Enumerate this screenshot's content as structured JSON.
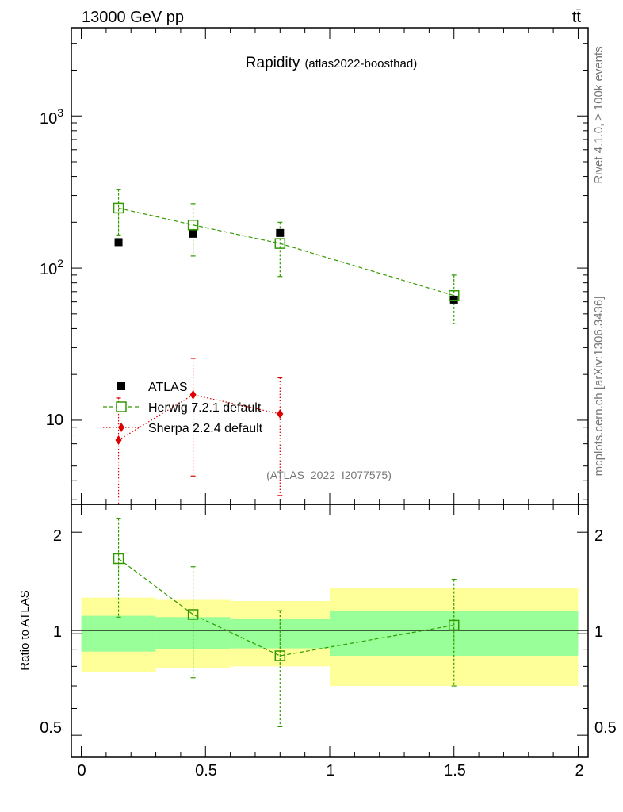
{
  "header": {
    "energy_label": "13000 GeV pp",
    "process_label": "tt̄",
    "title": "Rapidity",
    "subtitle": "(atlas2022-boosthad)",
    "watermark": "(ATLAS_2022_I2077575)",
    "side_label_top": "Rivet 4.1.0, ≥ 100k events",
    "side_label_bottom": "mcplots.cern.ch [arXiv:1306.3436]"
  },
  "chart_data": [
    {
      "type": "scatter",
      "panel": "main",
      "yscale": "log",
      "xlim": [
        -0.04,
        2.04
      ],
      "ylim": [
        2.8,
        3800
      ],
      "ytick_labels": [
        "10",
        "10^2",
        "10^3"
      ],
      "bins": [
        [
          0,
          0.3
        ],
        [
          0.3,
          0.6
        ],
        [
          0.6,
          1.0
        ],
        [
          1.0,
          2.0
        ]
      ],
      "legend_position": "lower-left",
      "series": [
        {
          "name": "ATLAS",
          "color": "#000000",
          "marker": "filled-square",
          "x": [
            0.15,
            0.45,
            0.8,
            1.5
          ],
          "values": [
            148,
            168,
            170,
            62
          ]
        },
        {
          "name": "Herwig 7.2.1 default",
          "color": "#339900",
          "marker": "open-square",
          "line": "dashed",
          "x": [
            0.15,
            0.45,
            0.8,
            1.5
          ],
          "values": [
            248,
            192,
            145,
            66
          ],
          "err_low": [
            165,
            120,
            88,
            43
          ],
          "err_high": [
            330,
            265,
            200,
            90
          ]
        },
        {
          "name": "Sherpa 2.2.4 default",
          "color": "#dd0000",
          "marker": "filled-diamond",
          "line": "dotted",
          "x": [
            0.15,
            0.45,
            0.8
          ],
          "values": [
            7.4,
            14.7,
            11.0
          ],
          "err_low": [
            2.8,
            4.3,
            3.2
          ],
          "err_high": [
            14.0,
            25.5,
            19.0
          ]
        }
      ]
    },
    {
      "type": "scatter",
      "panel": "ratio",
      "ylabel": "Ratio to ATLAS",
      "yscale": "log",
      "xlim": [
        -0.04,
        2.04
      ],
      "ylim": [
        0.43,
        2.42
      ],
      "xtick_labels": [
        "0",
        "0.5",
        "1",
        "1.5",
        "2"
      ],
      "ytick_labels": [
        "0.5",
        "1",
        "2"
      ],
      "bands": [
        {
          "x": [
            0,
            0.3
          ],
          "inner": [
            0.885,
            1.13
          ],
          "outer": [
            0.77,
            1.28
          ]
        },
        {
          "x": [
            0.3,
            0.6
          ],
          "inner": [
            0.9,
            1.12
          ],
          "outer": [
            0.79,
            1.26
          ]
        },
        {
          "x": [
            0.6,
            1.0
          ],
          "inner": [
            0.905,
            1.11
          ],
          "outer": [
            0.8,
            1.25
          ]
        },
        {
          "x": [
            1.0,
            2.0
          ],
          "inner": [
            0.86,
            1.17
          ],
          "outer": [
            0.7,
            1.37
          ]
        }
      ],
      "series": [
        {
          "name": "Herwig 7.2.1 default",
          "color": "#339900",
          "x": [
            0.15,
            0.45,
            0.8,
            1.5
          ],
          "values": [
            1.67,
            1.14,
            0.86,
            1.06
          ],
          "err_low": [
            1.12,
            0.74,
            0.53,
            0.7
          ],
          "err_high": [
            2.2,
            1.58,
            1.17,
            1.45
          ]
        }
      ]
    }
  ]
}
